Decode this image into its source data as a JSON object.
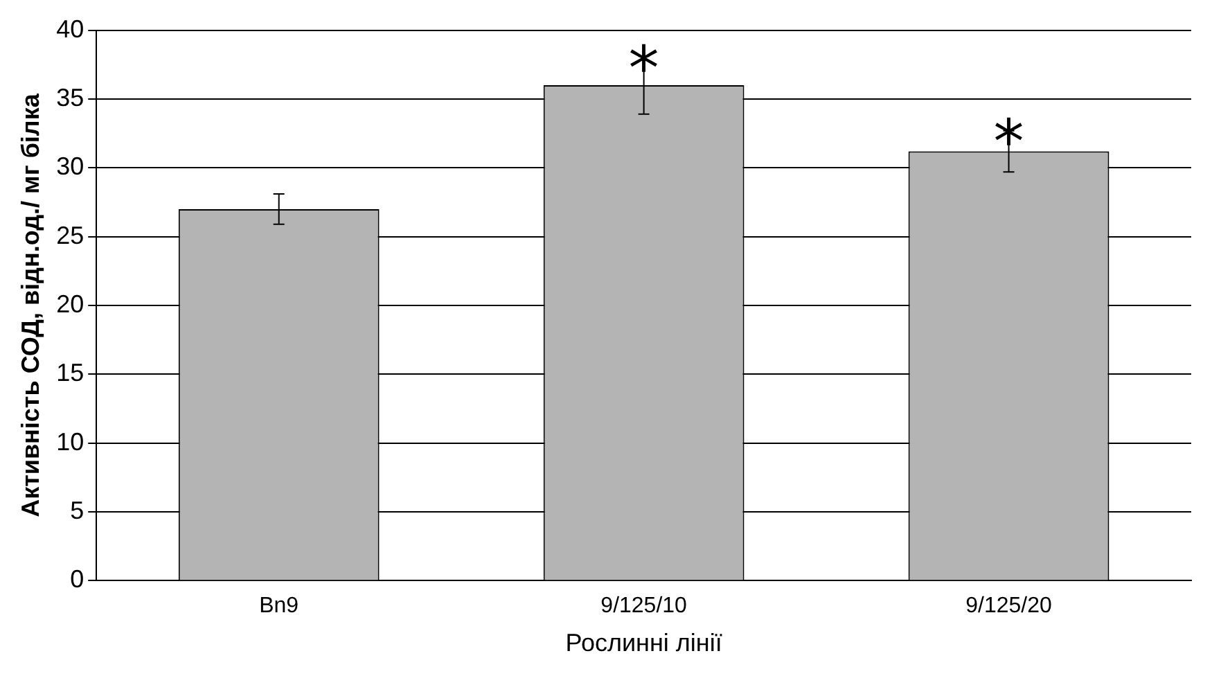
{
  "chart_data": {
    "type": "bar",
    "xlabel": "Рослинні лінії",
    "ylabel": "Активність СОД, відн.од./ мг білка",
    "categories": [
      "Bn9",
      "9/125/10",
      "9/125/20"
    ],
    "values": [
      27.0,
      36.0,
      31.2
    ],
    "errors": [
      1.1,
      2.1,
      1.5
    ],
    "color": "#b4b4b4",
    "ylim": [
      0,
      40
    ],
    "yticks": [
      0,
      5,
      10,
      15,
      20,
      25,
      30,
      35,
      40
    ],
    "grid": "y",
    "legend": false,
    "annotations": [
      {
        "text": "*",
        "x": "9/125/10",
        "y": 38.5
      },
      {
        "text": "*",
        "x": "9/125/20",
        "y": 33.2
      }
    ]
  }
}
